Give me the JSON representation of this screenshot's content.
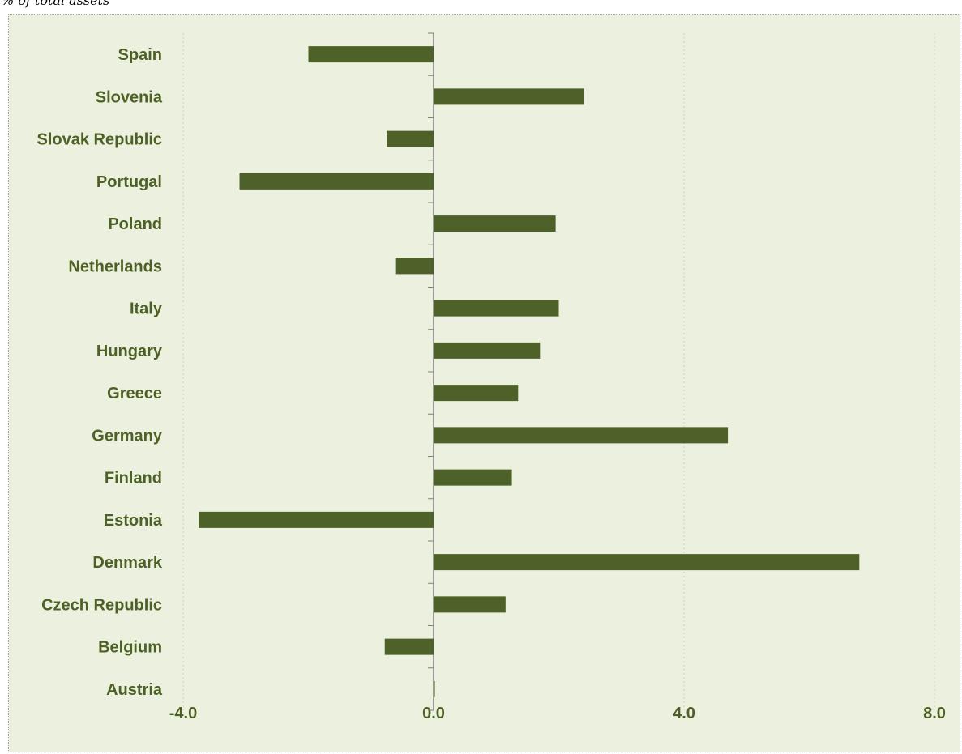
{
  "note": "% of total assets",
  "colors": {
    "bar": "#4e6128",
    "label": "#4e6124",
    "background": "#ebf0df",
    "grid": "#c9d9a8",
    "axis": "#7f7f7f"
  },
  "chart_data": {
    "type": "bar",
    "orientation": "horizontal",
    "categories": [
      "Spain",
      "Slovenia",
      "Slovak Republic",
      "Portugal",
      "Poland",
      "Netherlands",
      "Italy",
      "Hungary",
      "Greece",
      "Germany",
      "Finland",
      "Estonia",
      "Denmark",
      "Czech Republic",
      "Belgium",
      "Austria"
    ],
    "values": [
      -2.0,
      2.4,
      -0.75,
      -3.1,
      1.95,
      -0.6,
      2.0,
      1.7,
      1.35,
      4.7,
      1.25,
      -3.75,
      6.8,
      1.15,
      -0.78,
      0.02
    ],
    "xlim": [
      -4.0,
      8.0
    ],
    "xticks": [
      "-4.0",
      "0.0",
      "4.0",
      "8.0"
    ],
    "grid": true,
    "legend": "none"
  }
}
